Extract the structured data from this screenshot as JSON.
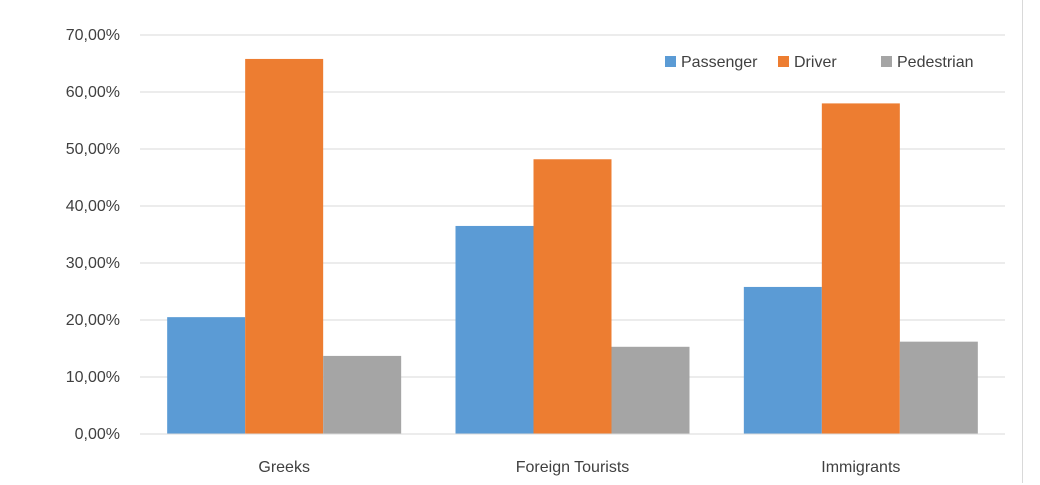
{
  "chart_data": {
    "type": "bar",
    "categories": [
      "Greeks",
      "Foreign Tourists",
      "Immigrants"
    ],
    "series": [
      {
        "name": "Passenger",
        "values": [
          20.5,
          36.5,
          25.8
        ],
        "color": "#5b9bd5"
      },
      {
        "name": "Driver",
        "values": [
          65.8,
          48.2,
          58.0
        ],
        "color": "#ed7d31"
      },
      {
        "name": "Pedestrian",
        "values": [
          13.7,
          15.3,
          16.2
        ],
        "color": "#a5a5a5"
      }
    ],
    "ylim": [
      0,
      70
    ],
    "yticks": [
      "0,00%",
      "10,00%",
      "20,00%",
      "30,00%",
      "40,00%",
      "50,00%",
      "60,00%",
      "70,00%"
    ],
    "grid": true,
    "legend_position": "top-right"
  }
}
